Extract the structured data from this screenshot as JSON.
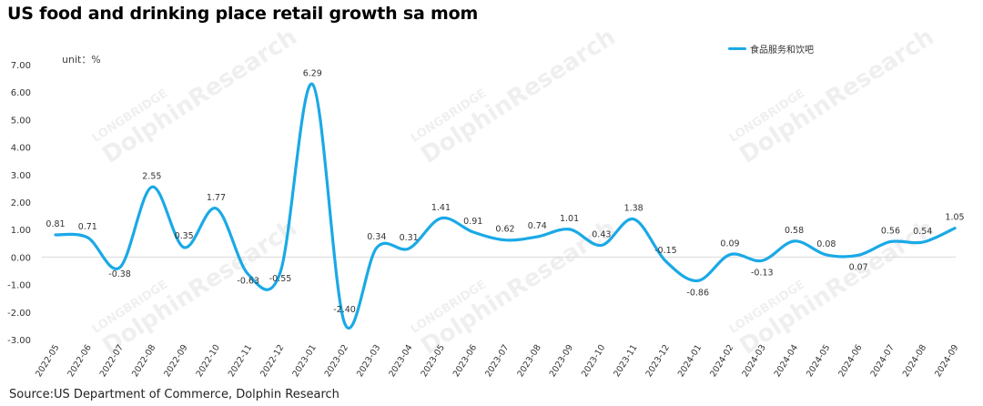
{
  "title": "US food and drinking place retail growth sa mom",
  "source": "Source:US Department of Commerce, Dolphin Research",
  "unit_label": "unit：%",
  "watermark": {
    "line1": "LONGBRIDGE",
    "line2": "DolphinResearch"
  },
  "chart_data": {
    "type": "line",
    "title": "US food and drinking place retail growth sa mom",
    "ylabel": "",
    "xlabel": "",
    "ylim": [
      -3.0,
      7.0
    ],
    "yticks": [
      "7.00",
      "6.00",
      "5.00",
      "4.00",
      "3.00",
      "2.00",
      "1.00",
      "0.00",
      "-1.00",
      "-2.00",
      "-3.00"
    ],
    "x": [
      "2022-05",
      "2022-06",
      "2022-07",
      "2022-08",
      "2022-09",
      "2022-10",
      "2022-11",
      "2022-12",
      "2023-01",
      "2023-02",
      "2023-03",
      "2023-04",
      "2023-05",
      "2023-06",
      "2023-07",
      "2023-08",
      "2023-09",
      "2023-10",
      "2023-11",
      "2023-12",
      "2024-01",
      "2024-02",
      "2024-03",
      "2024-04",
      "2024-05",
      "2024-06",
      "2024-07",
      "2024-08",
      "2024-09"
    ],
    "series": [
      {
        "name": "食品服务和饮吧",
        "color": "#1aa9e6",
        "values": [
          0.81,
          0.71,
          -0.38,
          2.55,
          0.35,
          1.77,
          -0.63,
          -0.55,
          6.29,
          -2.4,
          0.34,
          0.31,
          1.41,
          0.91,
          0.62,
          0.74,
          1.01,
          0.43,
          1.38,
          -0.15,
          -0.86,
          0.09,
          -0.13,
          0.58,
          0.08,
          0.07,
          0.56,
          0.54,
          1.05
        ],
        "labels": [
          "0.81",
          "0.71",
          "-0.38",
          "2.55",
          "0.35",
          "1.77",
          "-0.63",
          "-0.55",
          "6.29",
          "-2.40",
          "0.34",
          "0.31",
          "1.41",
          "0.91",
          "0.62",
          "0.74",
          "1.01",
          "0.43",
          "1.38",
          "-0.15",
          "-0.86",
          "0.09",
          "-0.13",
          "0.58",
          "0.08",
          "0.07",
          "0.56",
          "0.54",
          "1.05"
        ]
      }
    ],
    "grid": false,
    "legend_position": "top-right"
  }
}
